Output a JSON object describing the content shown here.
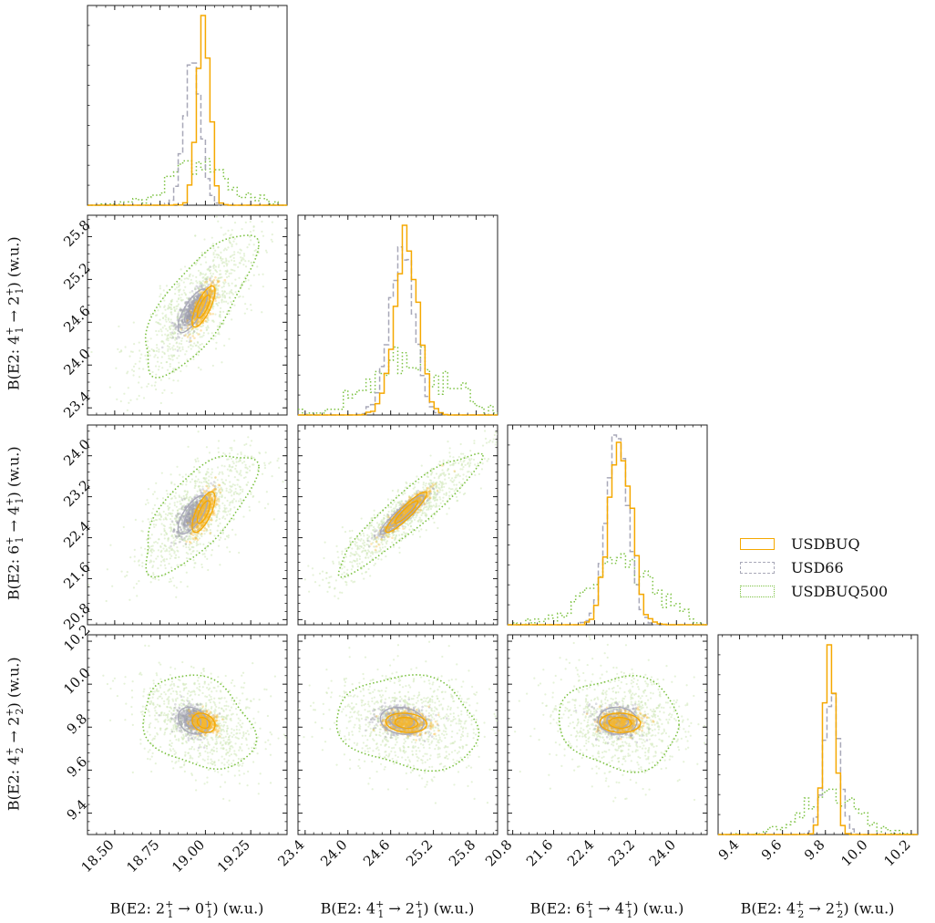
{
  "chart_data": {
    "type": "corner-plot",
    "parameters": [
      {
        "key": "p0",
        "label": "B(E2: 2₁⁺ → 0₁⁺) (w.u.)",
        "range": [
          18.35,
          19.45
        ],
        "ticks": [
          18.5,
          18.75,
          19.0,
          19.25
        ],
        "tick_labels": [
          "18.50",
          "18.75",
          "19.00",
          "19.25"
        ]
      },
      {
        "key": "p1",
        "label": "B(E2: 4₁⁺ → 2₁⁺) (w.u.)",
        "range": [
          23.3,
          26.1
        ],
        "ticks": [
          23.4,
          24.0,
          24.6,
          25.2,
          25.8
        ],
        "tick_labels": [
          "23.4",
          "24.0",
          "24.6",
          "25.2",
          "25.8"
        ]
      },
      {
        "key": "p2",
        "label": "B(E2: 6₁⁺ → 4₁⁺) (w.u.)",
        "range": [
          20.7,
          24.6
        ],
        "ticks": [
          20.8,
          21.6,
          22.4,
          23.2,
          24.0
        ],
        "tick_labels": [
          "20.8",
          "21.6",
          "22.4",
          "23.2",
          "24.0"
        ]
      },
      {
        "key": "p3",
        "label": "B(E2: 4₂⁺ → 2₂⁺) (w.u.)",
        "range": [
          9.3,
          10.23
        ],
        "ticks": [
          9.4,
          9.6,
          9.8,
          10.0,
          10.2
        ],
        "tick_labels": [
          "9.4",
          "9.6",
          "9.8",
          "10.0",
          "10.2"
        ]
      }
    ],
    "series": [
      {
        "name": "USDBUQ",
        "color": "#f5a800",
        "style": "solid",
        "mean": [
          18.99,
          24.82,
          22.9,
          9.82
        ],
        "sd": [
          0.035,
          0.16,
          0.22,
          0.025
        ]
      },
      {
        "name": "USD66",
        "color": "#a8a8b8",
        "style": "dashed",
        "mean": [
          18.93,
          24.76,
          22.85,
          9.83
        ],
        "sd": [
          0.045,
          0.17,
          0.21,
          0.035
        ]
      },
      {
        "name": "USDBUQ500",
        "color": "#7cc242",
        "style": "dotted",
        "mean": [
          18.96,
          24.85,
          22.9,
          9.82
        ],
        "sd": [
          0.17,
          0.55,
          0.65,
          0.12
        ]
      }
    ],
    "legend_position": "right-middle",
    "grid": false
  },
  "labels": {
    "x0_pre": "B(E2: 2",
    "x0_mid": " → 0",
    "x0_post": ") (w.u.)",
    "x1_pre": "B(E2: 4",
    "x1_mid": " → 2",
    "x1_post": ") (w.u.)",
    "x2_pre": "B(E2: 6",
    "x2_mid": " → 4",
    "x2_post": ") (w.u.)",
    "x3_pre": "B(E2: 4",
    "x3_mid": " → 2",
    "x3_post": ") (w.u.)",
    "plus": "+",
    "sub1": "1",
    "sub2": "2"
  },
  "legend": {
    "usdbuq": "USDBUQ",
    "usd66": "USD66",
    "usdbuq500": "USDBUQ500"
  }
}
